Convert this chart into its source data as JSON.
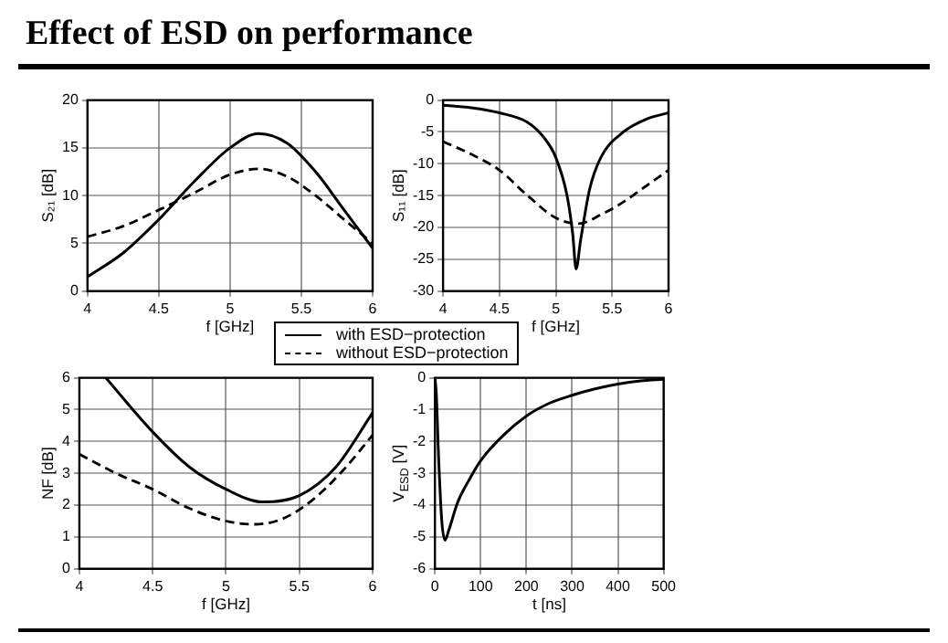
{
  "chart_data": [
    {
      "type": "line",
      "title": "Effect of ESD on performance",
      "xlabel": "f [GHz]",
      "ylabel": "S₂₁ [dB]",
      "xlim": [
        4,
        6
      ],
      "xticks": [
        4,
        4.5,
        5,
        5.5,
        6
      ],
      "ylim": [
        0,
        20
      ],
      "yticks": [
        0,
        5,
        10,
        15,
        20
      ],
      "grid": true,
      "marker": "none",
      "legend": "bottom",
      "series": [
        {
          "name": "with ESD−protection",
          "color": "#000000",
          "line_style": "solid",
          "x": [
            4,
            4.25,
            4.5,
            4.75,
            5,
            5.2,
            5.4,
            5.6,
            5.8,
            6
          ],
          "values": [
            1.5,
            4,
            7.5,
            11.5,
            15,
            16.5,
            15.5,
            12.5,
            8.5,
            4.5
          ]
        },
        {
          "name": "without ESD−protection",
          "color": "#000000",
          "line_style": "dashed",
          "x": [
            4,
            4.25,
            4.5,
            4.75,
            5,
            5.2,
            5.4,
            5.6,
            5.8,
            6
          ],
          "values": [
            5.7,
            6.8,
            8.5,
            10.3,
            12.2,
            12.8,
            12,
            10,
            7.5,
            5
          ]
        }
      ]
    },
    {
      "type": "line",
      "xlabel": "f [GHz]",
      "ylabel": "S₁₁ [dB]",
      "xlim": [
        4,
        6
      ],
      "xticks": [
        4,
        4.5,
        5,
        5.5,
        6
      ],
      "ylim": [
        -30,
        0
      ],
      "yticks": [
        -30,
        -25,
        -20,
        -15,
        -10,
        -5,
        0
      ],
      "grid": true,
      "marker": "none",
      "series": [
        {
          "color": "#000000",
          "line_style": "solid",
          "x": [
            4,
            4.25,
            4.5,
            4.75,
            4.9,
            5,
            5.1,
            5.15,
            5.18,
            5.22,
            5.3,
            5.4,
            5.6,
            5.8,
            6
          ],
          "values": [
            -0.8,
            -1.2,
            -2,
            -3.5,
            -6,
            -9,
            -15,
            -21,
            -26.5,
            -22,
            -14,
            -9,
            -5,
            -3,
            -2
          ]
        },
        {
          "color": "#000000",
          "line_style": "dashed",
          "x": [
            4,
            4.25,
            4.5,
            4.75,
            5,
            5.2,
            5.4,
            5.6,
            5.8,
            6
          ],
          "values": [
            -6.5,
            -8.5,
            -11,
            -15,
            -18.5,
            -19.4,
            -18,
            -16,
            -13.5,
            -11
          ]
        }
      ]
    },
    {
      "type": "line",
      "xlabel": "f [GHz]",
      "ylabel": "NF [dB]",
      "xlim": [
        4,
        6
      ],
      "xticks": [
        4,
        4.5,
        5,
        5.5,
        6
      ],
      "ylim": [
        0,
        6
      ],
      "yticks": [
        0,
        1,
        2,
        3,
        4,
        5,
        6
      ],
      "grid": true,
      "marker": "none",
      "series": [
        {
          "color": "#000000",
          "line_style": "solid",
          "x": [
            4.18,
            4.5,
            4.75,
            5,
            5.25,
            5.5,
            5.75,
            6
          ],
          "values": [
            6,
            4.3,
            3.2,
            2.5,
            2.1,
            2.3,
            3.2,
            4.9
          ]
        },
        {
          "color": "#000000",
          "line_style": "dashed",
          "x": [
            4,
            4.25,
            4.5,
            4.75,
            5,
            5.2,
            5.4,
            5.6,
            5.8,
            6
          ],
          "values": [
            3.6,
            3,
            2.5,
            1.9,
            1.5,
            1.4,
            1.6,
            2.2,
            3.1,
            4.2
          ]
        }
      ]
    },
    {
      "type": "line",
      "xlabel": "t [ns]",
      "ylabel": "V$_{ESD}$ [V]",
      "xlim": [
        0,
        500
      ],
      "xticks": [
        0,
        100,
        200,
        300,
        400,
        500
      ],
      "ylim": [
        -6,
        0
      ],
      "yticks": [
        -6,
        -5,
        -4,
        -3,
        -2,
        -1,
        0
      ],
      "grid": true,
      "marker": "none",
      "series": [
        {
          "color": "#000000",
          "line_style": "solid",
          "x": [
            0,
            3,
            8,
            15,
            22,
            30,
            50,
            75,
            100,
            150,
            200,
            250,
            300,
            350,
            400,
            450,
            500
          ],
          "values": [
            0,
            -0.5,
            -2.5,
            -4.5,
            -5.1,
            -4.8,
            -3.9,
            -3.2,
            -2.6,
            -1.8,
            -1.2,
            -0.8,
            -0.55,
            -0.35,
            -0.2,
            -0.1,
            -0.05
          ]
        }
      ]
    }
  ]
}
